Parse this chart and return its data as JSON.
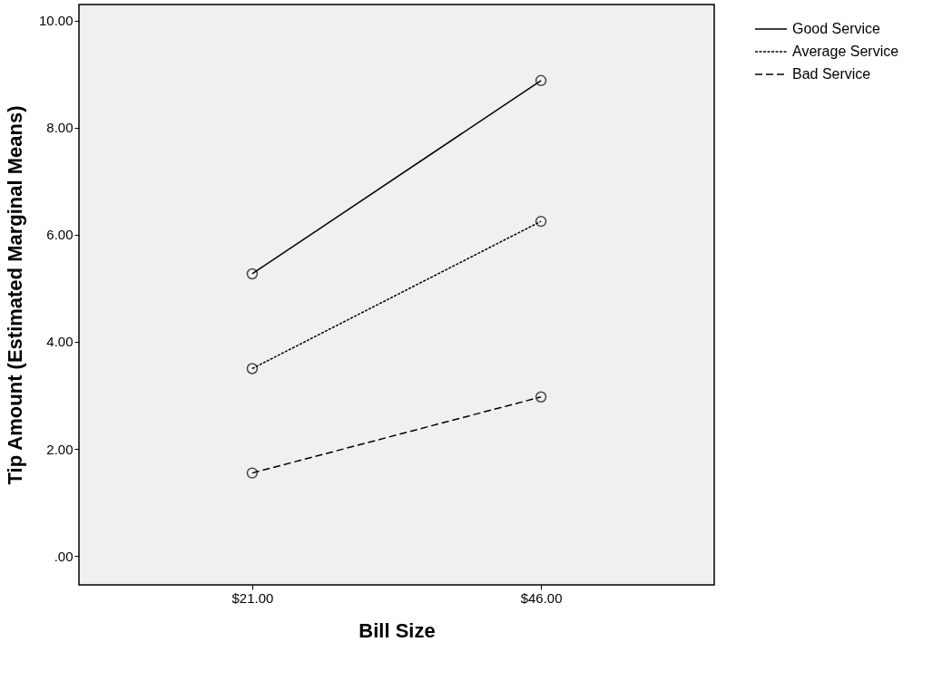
{
  "chart_data": {
    "type": "line",
    "xlabel": "Bill Size",
    "ylabel": "Tip Amount (Estimated Marginal Means)",
    "categories": [
      "$21.00",
      "$46.00"
    ],
    "series": [
      {
        "name": "Good Service",
        "color": "#000000",
        "line_style": "solid",
        "values": [
          5.27,
          8.88
        ]
      },
      {
        "name": "Average Service",
        "color": "#000000",
        "line_style": "dotted",
        "values": [
          3.5,
          6.25
        ]
      },
      {
        "name": "Bad Service",
        "color": "#000000",
        "line_style": "dashed",
        "values": [
          1.55,
          2.97
        ]
      }
    ],
    "ylim": [
      -0.54,
      10.3
    ],
    "yticks": [
      {
        "value": 0,
        "label": ".00"
      },
      {
        "value": 2,
        "label": "2.00"
      },
      {
        "value": 4,
        "label": "4.00"
      },
      {
        "value": 6,
        "label": "6.00"
      },
      {
        "value": 8,
        "label": "8.00"
      },
      {
        "value": 10,
        "label": "10.00"
      }
    ],
    "marker": "circle",
    "grid": false,
    "legend": "top right"
  }
}
